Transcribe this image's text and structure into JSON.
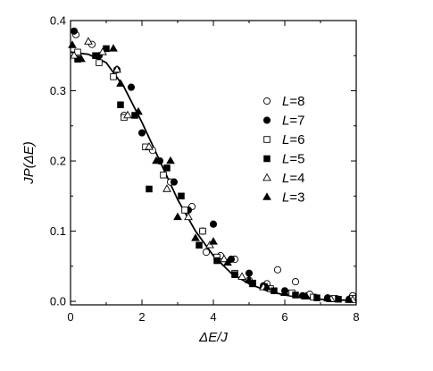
{
  "chart_data": {
    "type": "scatter",
    "xlabel": "ΔE/J",
    "ylabel": "JP(ΔE)",
    "xlim": [
      0,
      8
    ],
    "ylim": [
      -0.005,
      0.4
    ],
    "xticks": [
      0,
      2,
      4,
      6,
      8
    ],
    "yticks": [
      0.0,
      0.1,
      0.2,
      0.3,
      0.4
    ],
    "xtick_labels": [
      "0",
      "2",
      "4",
      "6",
      "8"
    ],
    "ytick_labels": [
      "0.0",
      "0.1",
      "0.2",
      "0.3",
      "0.4"
    ],
    "grid": false,
    "legend_position": "right",
    "series": [
      {
        "name": "L=8",
        "marker": "open-circle",
        "points": [
          [
            0.15,
            0.38
          ],
          [
            0.6,
            0.366
          ],
          [
            1.5,
            0.265
          ],
          [
            2.3,
            0.215
          ],
          [
            2.8,
            0.17
          ],
          [
            3.4,
            0.135
          ],
          [
            3.8,
            0.07
          ],
          [
            4.2,
            0.065
          ],
          [
            4.6,
            0.06
          ],
          [
            5.0,
            0.03
          ],
          [
            5.5,
            0.025
          ],
          [
            5.8,
            0.045
          ],
          [
            6.3,
            0.028
          ],
          [
            6.7,
            0.01
          ],
          [
            7.2,
            0.005
          ],
          [
            7.9,
            0.008
          ]
        ]
      },
      {
        "name": "L=7",
        "marker": "filled-circle",
        "points": [
          [
            0.1,
            0.385
          ],
          [
            0.8,
            0.35
          ],
          [
            1.3,
            0.33
          ],
          [
            1.7,
            0.305
          ],
          [
            2.0,
            0.24
          ],
          [
            2.5,
            0.2
          ],
          [
            2.9,
            0.17
          ],
          [
            3.3,
            0.13
          ],
          [
            3.7,
            0.1
          ],
          [
            4.0,
            0.11
          ],
          [
            4.5,
            0.06
          ],
          [
            5.0,
            0.04
          ],
          [
            5.4,
            0.022
          ],
          [
            6.0,
            0.015
          ],
          [
            6.5,
            0.008
          ],
          [
            7.2,
            0.004
          ],
          [
            7.8,
            0.003
          ]
        ]
      },
      {
        "name": "L=6",
        "marker": "open-square",
        "points": [
          [
            0.2,
            0.355
          ],
          [
            0.8,
            0.34
          ],
          [
            1.2,
            0.32
          ],
          [
            1.5,
            0.262
          ],
          [
            2.1,
            0.22
          ],
          [
            2.6,
            0.18
          ],
          [
            3.2,
            0.13
          ],
          [
            3.7,
            0.1
          ],
          [
            4.1,
            0.063
          ],
          [
            4.6,
            0.04
          ],
          [
            5.1,
            0.026
          ],
          [
            5.6,
            0.018
          ],
          [
            6.2,
            0.012
          ],
          [
            6.8,
            0.006
          ],
          [
            7.4,
            0.004
          ],
          [
            7.9,
            0.004
          ]
        ]
      },
      {
        "name": "L=5",
        "marker": "filled-square",
        "points": [
          [
            0.2,
            0.345
          ],
          [
            0.7,
            0.35
          ],
          [
            1.0,
            0.36
          ],
          [
            1.4,
            0.28
          ],
          [
            1.8,
            0.265
          ],
          [
            2.2,
            0.16
          ],
          [
            2.7,
            0.19
          ],
          [
            3.1,
            0.15
          ],
          [
            3.6,
            0.08
          ],
          [
            4.1,
            0.058
          ],
          [
            4.6,
            0.038
          ],
          [
            5.1,
            0.025
          ],
          [
            5.7,
            0.015
          ],
          [
            6.3,
            0.009
          ],
          [
            6.9,
            0.005
          ],
          [
            7.5,
            0.003
          ]
        ]
      },
      {
        "name": "L=4",
        "marker": "open-triangle",
        "points": [
          [
            0.1,
            0.35
          ],
          [
            0.5,
            0.37
          ],
          [
            0.9,
            0.355
          ],
          [
            1.3,
            0.33
          ],
          [
            1.6,
            0.265
          ],
          [
            2.2,
            0.22
          ],
          [
            2.7,
            0.16
          ],
          [
            3.3,
            0.12
          ],
          [
            3.9,
            0.08
          ],
          [
            4.3,
            0.06
          ],
          [
            4.8,
            0.035
          ],
          [
            5.4,
            0.02
          ],
          [
            6.0,
            0.012
          ],
          [
            6.6,
            0.007
          ],
          [
            7.3,
            0.003
          ],
          [
            7.9,
            0.002
          ]
        ]
      },
      {
        "name": "L=3",
        "marker": "filled-triangle",
        "points": [
          [
            0.05,
            0.365
          ],
          [
            0.3,
            0.345
          ],
          [
            1.2,
            0.36
          ],
          [
            1.4,
            0.31
          ],
          [
            1.9,
            0.27
          ],
          [
            2.4,
            0.2
          ],
          [
            2.8,
            0.2
          ],
          [
            3.0,
            0.12
          ],
          [
            3.5,
            0.09
          ],
          [
            4.0,
            0.085
          ],
          [
            4.4,
            0.055
          ],
          [
            5.0,
            0.03
          ],
          [
            5.5,
            0.02
          ],
          [
            6.0,
            0.012
          ],
          [
            6.6,
            0.007
          ],
          [
            7.2,
            0.004
          ],
          [
            7.8,
            0.002
          ]
        ]
      }
    ],
    "fit_curve": {
      "style": "solid-line",
      "points": [
        [
          0.0,
          0.355
        ],
        [
          0.5,
          0.352
        ],
        [
          1.0,
          0.34
        ],
        [
          1.5,
          0.305
        ],
        [
          2.0,
          0.255
        ],
        [
          2.5,
          0.2
        ],
        [
          3.0,
          0.145
        ],
        [
          3.5,
          0.1
        ],
        [
          4.0,
          0.065
        ],
        [
          4.5,
          0.04
        ],
        [
          5.0,
          0.025
        ],
        [
          5.5,
          0.015
        ],
        [
          6.0,
          0.009
        ],
        [
          6.5,
          0.005
        ],
        [
          7.0,
          0.003
        ],
        [
          7.5,
          0.002
        ],
        [
          8.0,
          0.001
        ]
      ]
    }
  }
}
